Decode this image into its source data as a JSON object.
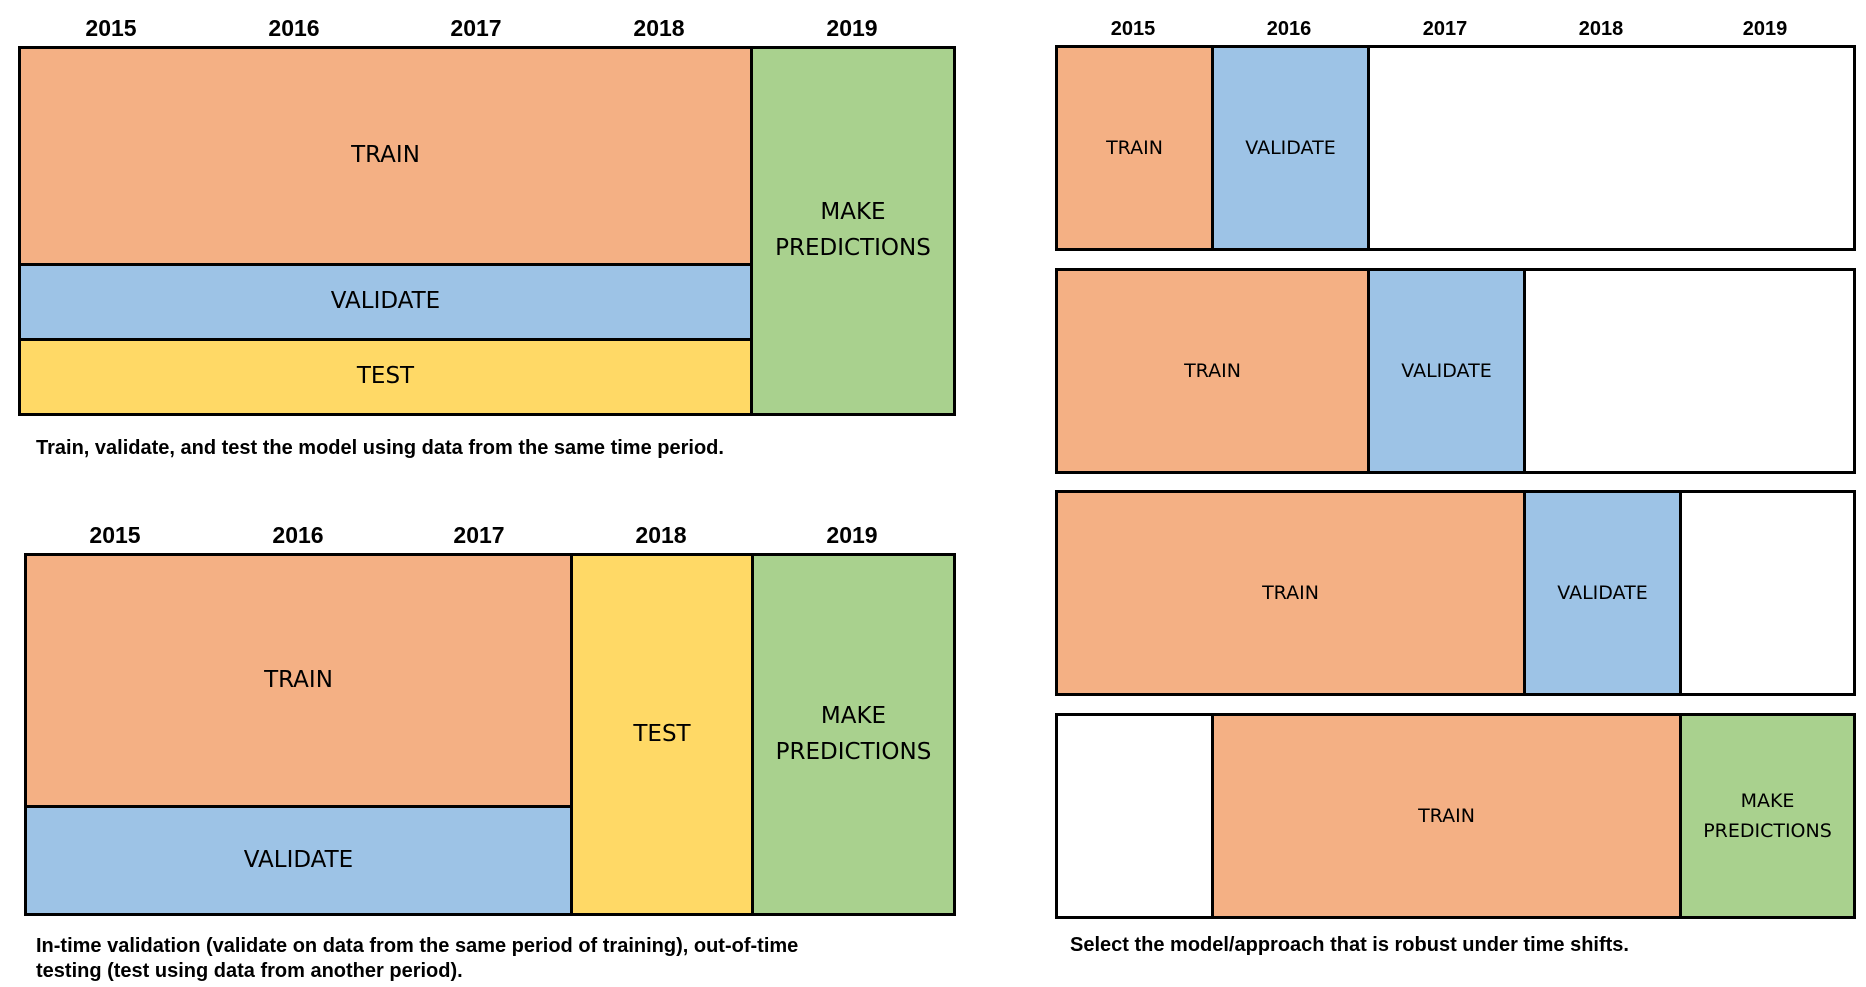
{
  "top_left": {
    "years": [
      "2015",
      "2016",
      "2017",
      "2018",
      "2019"
    ],
    "train": "TRAIN",
    "validate": "VALIDATE",
    "test": "TEST",
    "predict_line1": "MAKE",
    "predict_line2": "PREDICTIONS",
    "caption": "Train, validate, and test the model using data from the same time period."
  },
  "bottom_left": {
    "years": [
      "2015",
      "2016",
      "2017",
      "2018",
      "2019"
    ],
    "train": "TRAIN",
    "validate": "VALIDATE",
    "test": "TEST",
    "predict_line1": "MAKE",
    "predict_line2": "PREDICTIONS",
    "caption_line1": "In-time validation (validate on data from the same period of training), out-of-time",
    "caption_line2": "testing  (test using data from another period)."
  },
  "right": {
    "years": [
      "2015",
      "2016",
      "2017",
      "2018",
      "2019"
    ],
    "rows": [
      {
        "train": "TRAIN",
        "validate": "VALIDATE"
      },
      {
        "train": "TRAIN",
        "validate": "VALIDATE"
      },
      {
        "train": "TRAIN",
        "validate": "VALIDATE"
      },
      {
        "train": "TRAIN",
        "predict_line1": "MAKE",
        "predict_line2": "PREDICTIONS"
      }
    ],
    "caption": "Select the model/approach that is robust under time shifts."
  },
  "colors": {
    "train": "#f4b084",
    "validate": "#9dc3e6",
    "test": "#ffd966",
    "predict": "#a9d18e"
  }
}
